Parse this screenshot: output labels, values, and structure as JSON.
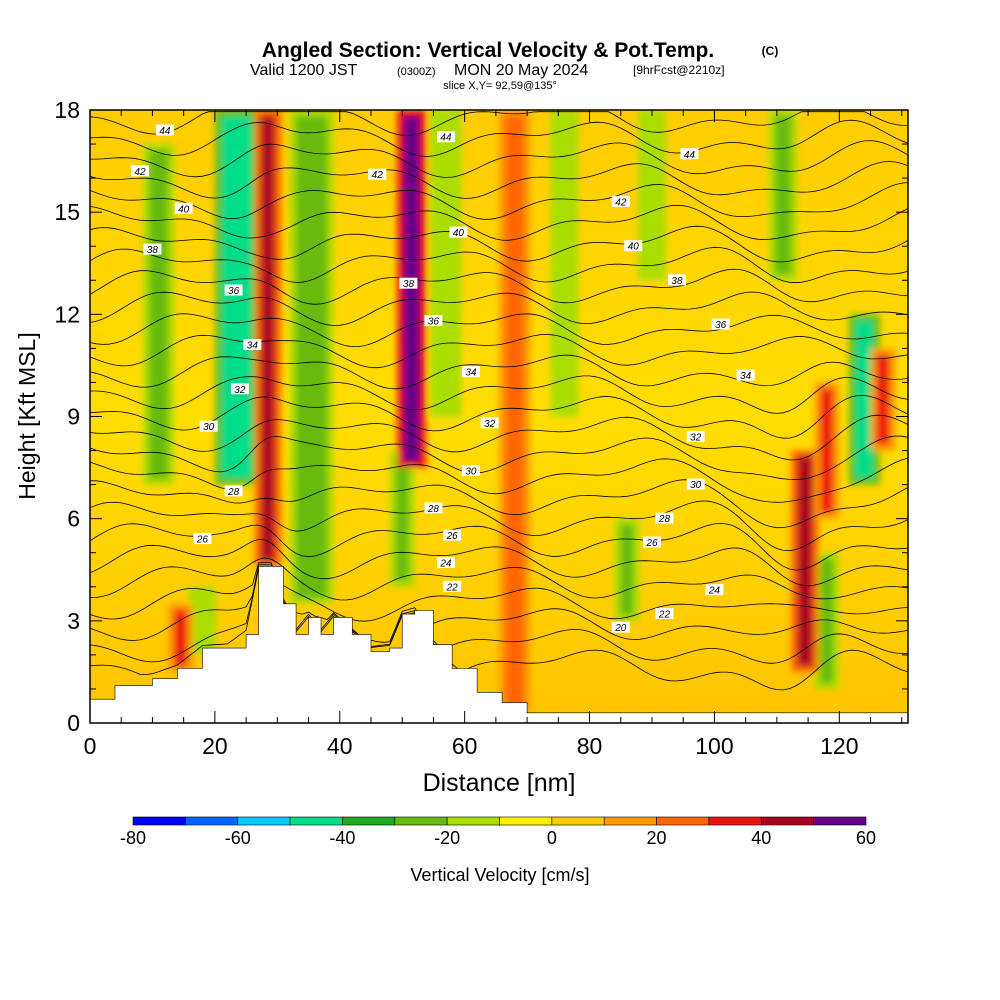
{
  "header": {
    "title": "Angled Section: Vertical Velocity & Pot.Temp.",
    "title_unit": "(C)",
    "valid_prefix": "Valid 1200 JST",
    "valid_utc": "(0300Z)",
    "valid_date": "MON 20 May 2024",
    "forecast": "[9hrFcst@2210z]",
    "slice": "slice X,Y= 92,59@135°"
  },
  "chart_data": {
    "type": "heatmap",
    "xlabel": "Distance [nm]",
    "ylabel": "Height [Kft MSL]",
    "xlim": [
      0,
      131
    ],
    "ylim": [
      0,
      18
    ],
    "x_ticks": [
      0,
      20,
      40,
      60,
      80,
      100,
      120
    ],
    "y_ticks": [
      0,
      3,
      6,
      9,
      12,
      15,
      18
    ],
    "colorbar": {
      "label": "Vertical Velocity [cm/s]",
      "ticks": [
        -80,
        -60,
        -40,
        -20,
        0,
        20,
        40,
        60
      ],
      "bins": [
        -80,
        -70,
        -60,
        -50,
        -40,
        -30,
        -20,
        -10,
        0,
        10,
        20,
        30,
        40,
        50,
        60
      ],
      "colors": [
        "#0000ff",
        "#0066ff",
        "#00ccff",
        "#00dd88",
        "#22aa22",
        "#66bb11",
        "#aadd00",
        "#ffee00",
        "#ffcc00",
        "#ff9900",
        "#ff6600",
        "#ee1111",
        "#aa0022",
        "#660088"
      ]
    },
    "terrain": [
      [
        0,
        0.7
      ],
      [
        4,
        1.1
      ],
      [
        10,
        1.3
      ],
      [
        14,
        1.6
      ],
      [
        18,
        2.2
      ],
      [
        22,
        2.2
      ],
      [
        25,
        2.6
      ],
      [
        27,
        4.6
      ],
      [
        29,
        4.6
      ],
      [
        31,
        3.5
      ],
      [
        33,
        2.6
      ],
      [
        35,
        3.1
      ],
      [
        37,
        2.6
      ],
      [
        39,
        3.1
      ],
      [
        42,
        2.6
      ],
      [
        45,
        2.1
      ],
      [
        48,
        2.2
      ],
      [
        50,
        3.2
      ],
      [
        52,
        3.3
      ],
      [
        55,
        2.3
      ],
      [
        58,
        1.6
      ],
      [
        62,
        0.9
      ],
      [
        66,
        0.6
      ],
      [
        70,
        0.3
      ],
      [
        72,
        0.3
      ],
      [
        131,
        0.3
      ]
    ],
    "isotherm_levels": [
      20,
      22,
      24,
      26,
      28,
      30,
      32,
      34,
      36,
      38,
      40,
      42,
      44
    ],
    "isotherm_labels": [
      {
        "value": 44,
        "x": 12,
        "y": 17.4
      },
      {
        "value": 42,
        "x": 8,
        "y": 16.2
      },
      {
        "value": 40,
        "x": 15,
        "y": 15.1
      },
      {
        "value": 38,
        "x": 10,
        "y": 13.9
      },
      {
        "value": 36,
        "x": 23,
        "y": 12.7
      },
      {
        "value": 34,
        "x": 26,
        "y": 11.1
      },
      {
        "value": 32,
        "x": 24,
        "y": 9.8
      },
      {
        "value": 30,
        "x": 19,
        "y": 8.7
      },
      {
        "value": 28,
        "x": 23,
        "y": 6.8
      },
      {
        "value": 26,
        "x": 18,
        "y": 5.4
      },
      {
        "value": 44,
        "x": 57,
        "y": 17.2
      },
      {
        "value": 42,
        "x": 46,
        "y": 16.1
      },
      {
        "value": 40,
        "x": 59,
        "y": 14.4
      },
      {
        "value": 38,
        "x": 51,
        "y": 12.9
      },
      {
        "value": 36,
        "x": 55,
        "y": 11.8
      },
      {
        "value": 34,
        "x": 61,
        "y": 10.3
      },
      {
        "value": 32,
        "x": 64,
        "y": 8.8
      },
      {
        "value": 30,
        "x": 61,
        "y": 7.4
      },
      {
        "value": 28,
        "x": 55,
        "y": 6.3
      },
      {
        "value": 26,
        "x": 58,
        "y": 5.5
      },
      {
        "value": 24,
        "x": 57,
        "y": 4.7
      },
      {
        "value": 22,
        "x": 58,
        "y": 4.0
      },
      {
        "value": 44,
        "x": 96,
        "y": 16.7
      },
      {
        "value": 42,
        "x": 85,
        "y": 15.3
      },
      {
        "value": 40,
        "x": 87,
        "y": 14.0
      },
      {
        "value": 38,
        "x": 94,
        "y": 13.0
      },
      {
        "value": 36,
        "x": 101,
        "y": 11.7
      },
      {
        "value": 34,
        "x": 105,
        "y": 10.2
      },
      {
        "value": 32,
        "x": 97,
        "y": 8.4
      },
      {
        "value": 30,
        "x": 97,
        "y": 7.0
      },
      {
        "value": 28,
        "x": 92,
        "y": 6.0
      },
      {
        "value": 26,
        "x": 90,
        "y": 5.3
      },
      {
        "value": 24,
        "x": 100,
        "y": 3.9
      },
      {
        "value": 22,
        "x": 92,
        "y": 3.2
      },
      {
        "value": 20,
        "x": 85,
        "y": 2.8
      }
    ],
    "updraft_columns": [
      {
        "x": 28.5,
        "width": 2.2,
        "ybottom": 4.6,
        "ytop": 18,
        "value": 40
      },
      {
        "x": 51.5,
        "width": 2.6,
        "ybottom": 7.5,
        "ytop": 18,
        "value": 55
      },
      {
        "x": 114.5,
        "width": 2.4,
        "ybottom": 1.5,
        "ytop": 8,
        "value": 45
      },
      {
        "x": 14.5,
        "width": 2,
        "ybottom": 1.5,
        "ytop": 3.5,
        "value": 35
      },
      {
        "x": 118,
        "width": 2,
        "ybottom": 6,
        "ytop": 10,
        "value": 35
      },
      {
        "x": 127,
        "width": 2,
        "ybottom": 8,
        "ytop": 11,
        "value": 35
      },
      {
        "x": 68,
        "width": 3,
        "ybottom": 0.3,
        "ytop": 18,
        "value": 25
      }
    ],
    "downdraft_columns": [
      {
        "x": 23.5,
        "width": 5,
        "ybottom": 7,
        "ytop": 18,
        "value": -45
      },
      {
        "x": 35.5,
        "width": 5,
        "ybottom": 3.5,
        "ytop": 18,
        "value": -30
      },
      {
        "x": 11,
        "width": 3,
        "ybottom": 7,
        "ytop": 17,
        "value": -25
      },
      {
        "x": 18,
        "width": 2.5,
        "ybottom": 2,
        "ytop": 4,
        "value": -20
      },
      {
        "x": 50,
        "width": 2,
        "ybottom": 4,
        "ytop": 8,
        "value": -30
      },
      {
        "x": 57,
        "width": 3,
        "ybottom": 9,
        "ytop": 18,
        "value": -20
      },
      {
        "x": 76,
        "width": 2.5,
        "ybottom": 9,
        "ytop": 18,
        "value": -15
      },
      {
        "x": 86,
        "width": 2,
        "ybottom": 3,
        "ytop": 6,
        "value": -25
      },
      {
        "x": 90,
        "width": 2.5,
        "ybottom": 13,
        "ytop": 18,
        "value": -20
      },
      {
        "x": 111,
        "width": 2.5,
        "ybottom": 13,
        "ytop": 18,
        "value": -30
      },
      {
        "x": 124,
        "width": 3,
        "ybottom": 7,
        "ytop": 12,
        "value": -45
      },
      {
        "x": 118,
        "width": 2,
        "ybottom": 1,
        "ytop": 5,
        "value": -25
      }
    ]
  }
}
